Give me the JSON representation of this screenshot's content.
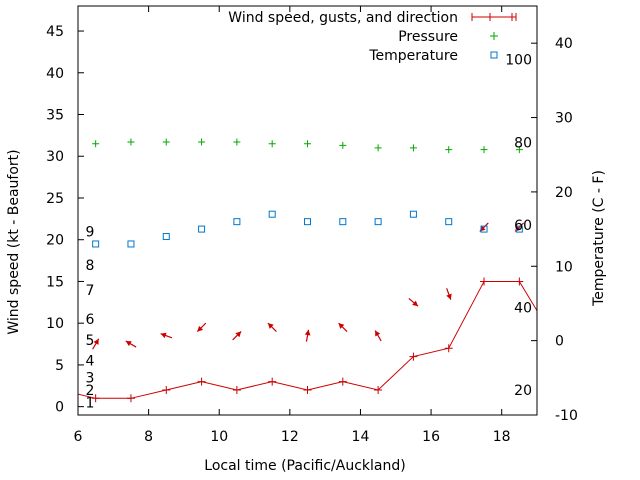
{
  "chart_data": {
    "type": "line",
    "title": "",
    "xlabel": "Local time (Pacific/Auckland)",
    "ylabel": "Wind speed (kt - Beaufort)",
    "y2label": "Temperature (C - F)",
    "xlim": [
      6,
      19
    ],
    "ylim": [
      -1,
      48
    ],
    "y2lim": [
      -10,
      45
    ],
    "x_ticks": [
      "6",
      "8",
      "10",
      "12",
      "14",
      "16",
      "18"
    ],
    "y_ticks": [
      "0",
      "5",
      "10",
      "15",
      "20",
      "25",
      "30",
      "35",
      "40",
      "45"
    ],
    "y2_ticks": [
      "-10",
      "0",
      "10",
      "20",
      "30",
      "40"
    ],
    "beaufort_labels": [
      "1",
      "2",
      "3",
      "4",
      "5",
      "6",
      "7",
      "8",
      "9"
    ],
    "fahrenheit_labels": [
      "20",
      "40",
      "60",
      "80",
      "100"
    ],
    "legend": {
      "placement": "top-right",
      "entries": [
        "Wind speed, gusts, and direction",
        "Pressure",
        "Temperature"
      ]
    },
    "series": [
      {
        "name": "Wind speed, gusts, and direction",
        "color": "#cc0000",
        "x": [
          5.5,
          6.5,
          7.5,
          8.5,
          9.5,
          10.5,
          11.5,
          12.5,
          13.5,
          14.5,
          15.5,
          16.5,
          17.5,
          18.5,
          19.5
        ],
        "y": [
          2,
          1,
          1,
          2,
          3,
          2,
          3,
          2,
          3,
          2,
          6,
          7,
          15,
          15,
          8
        ],
        "direction_deg": [
          315,
          30,
          300,
          290,
          225,
          45,
          315,
          10,
          315,
          330,
          130,
          160,
          225,
          225,
          0
        ]
      },
      {
        "name": "Pressure",
        "color": "#00aa00",
        "x": [
          6.5,
          7.5,
          8.5,
          9.5,
          10.5,
          11.5,
          12.5,
          13.5,
          14.5,
          15.5,
          16.5,
          17.5,
          18.5
        ],
        "y": [
          31.5,
          31.7,
          31.7,
          31.7,
          31.7,
          31.5,
          31.5,
          31.3,
          31.0,
          31.0,
          30.8,
          30.8,
          30.8
        ]
      },
      {
        "name": "Temperature",
        "color": "#0077cc",
        "x": [
          6.5,
          7.5,
          8.5,
          9.5,
          10.5,
          11.5,
          12.5,
          13.5,
          14.5,
          15.5,
          16.5,
          17.5,
          18.5
        ],
        "y": [
          13,
          13,
          14,
          15,
          16,
          17,
          16,
          16,
          16,
          17,
          16,
          15,
          15
        ]
      }
    ]
  }
}
